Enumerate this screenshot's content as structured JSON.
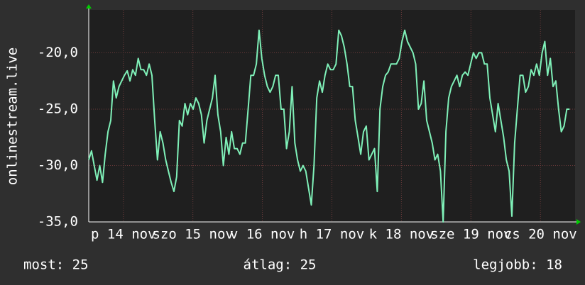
{
  "chart_data": {
    "type": "line",
    "ylabel": "onlinestream.live",
    "ylim": [
      -35,
      -16.2
    ],
    "yticks": [
      {
        "value": -35,
        "label": "-35,0"
      },
      {
        "value": -30,
        "label": "-30,0"
      },
      {
        "value": -25,
        "label": "-25,0"
      },
      {
        "value": -20,
        "label": "-20,0"
      }
    ],
    "xlim": [
      0,
      177
    ],
    "xticks": [
      {
        "value": 12.6,
        "label": "p 14 nov"
      },
      {
        "value": 37.9,
        "label": "szo 15 nov"
      },
      {
        "value": 63.2,
        "label": "v 16 nov"
      },
      {
        "value": 88.5,
        "label": "h 17 nov"
      },
      {
        "value": 113.8,
        "label": "k 18 nov"
      },
      {
        "value": 139.1,
        "label": "sze 19 nov"
      },
      {
        "value": 164.4,
        "label": "cs 20 nov"
      }
    ],
    "grid": true,
    "color": "#7ff0b8",
    "values": [
      -29.5,
      -28.7,
      -30,
      -31.3,
      -30,
      -31.5,
      -29,
      -27,
      -26,
      -22.5,
      -24,
      -23,
      -22.5,
      -22,
      -21.6,
      -22.5,
      -21.5,
      -22,
      -20.5,
      -21.5,
      -21.5,
      -22,
      -21,
      -22,
      -26,
      -29.5,
      -27,
      -28,
      -29.5,
      -30.5,
      -31.5,
      -32.3,
      -31,
      -26,
      -26.5,
      -24.5,
      -25.5,
      -24.5,
      -25,
      -24,
      -24.5,
      -25.5,
      -28,
      -26,
      -25,
      -24,
      -22,
      -25.5,
      -27,
      -30,
      -27.5,
      -29,
      -27,
      -28.5,
      -28.5,
      -29,
      -28,
      -28,
      -25,
      -22,
      -22,
      -21,
      -18,
      -20.5,
      -22,
      -23,
      -23.5,
      -23,
      -22,
      -22,
      -25,
      -25,
      -28.5,
      -27,
      -23,
      -28,
      -29.5,
      -30.5,
      -30,
      -30.5,
      -32,
      -33.5,
      -30,
      -24,
      -22.5,
      -23.5,
      -22,
      -21,
      -21.5,
      -21.5,
      -21,
      -18,
      -18.5,
      -19.5,
      -21,
      -23,
      -23,
      -26,
      -27.5,
      -29,
      -27,
      -26.5,
      -29.5,
      -29,
      -28.5,
      -32.3,
      -25,
      -23,
      -22,
      -21.7,
      -21,
      -21,
      -21,
      -20.5,
      -19,
      -18,
      -19,
      -19.5,
      -20,
      -21,
      -25,
      -24.5,
      -22.5,
      -26,
      -27,
      -28,
      -29.5,
      -29,
      -30.5,
      -35,
      -27,
      -24,
      -23,
      -22.5,
      -22,
      -23,
      -22,
      -21.7,
      -22,
      -21,
      -20,
      -20.5,
      -20,
      -20,
      -21,
      -21,
      -24,
      -25.5,
      -27,
      -24.5,
      -26,
      -27.5,
      -29.5,
      -30.5,
      -34.5,
      -28,
      -25,
      -22,
      -22,
      -23.5,
      -23,
      -21.5,
      -22,
      -21,
      -22,
      -20,
      -19,
      -22,
      -20.5,
      -23,
      -22.5,
      -25,
      -27,
      -26.5,
      -25,
      -25
    ],
    "annotations": [
      "most: 25",
      "átlag: 25",
      "legjobb: 18"
    ]
  }
}
